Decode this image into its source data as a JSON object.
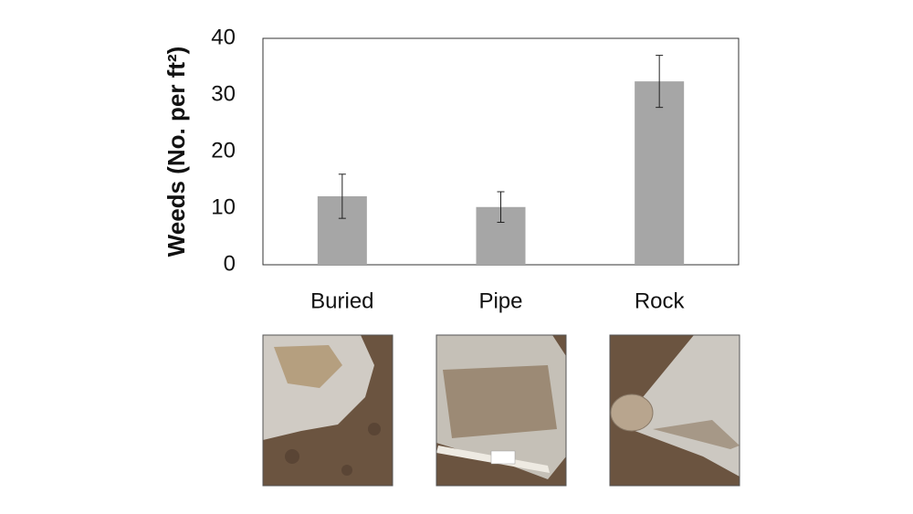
{
  "chart_data": {
    "type": "bar",
    "y_label": "Weeds (No. per ft²)",
    "categories": [
      "Buried",
      "Pipe",
      "Rock"
    ],
    "values": [
      12.1,
      10.2,
      32.4
    ],
    "errors": [
      3.9,
      2.7,
      4.6
    ],
    "color": "#a6a6a6",
    "ylim": [
      0,
      40
    ],
    "yticks": [
      0,
      10,
      20,
      30,
      40
    ],
    "grid": false
  }
}
